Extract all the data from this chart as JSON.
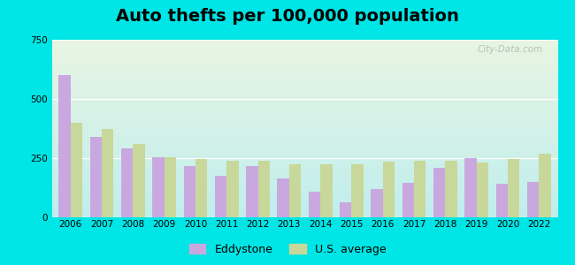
{
  "title": "Auto thefts per 100,000 population",
  "years": [
    2006,
    2007,
    2008,
    2009,
    2010,
    2011,
    2012,
    2013,
    2014,
    2015,
    2016,
    2017,
    2018,
    2019,
    2020,
    2022
  ],
  "eddystone": [
    600,
    340,
    290,
    255,
    215,
    175,
    215,
    165,
    110,
    65,
    120,
    145,
    210,
    250,
    140,
    150
  ],
  "us_average": [
    400,
    375,
    310,
    255,
    245,
    240,
    240,
    225,
    225,
    225,
    235,
    240,
    240,
    230,
    245,
    270
  ],
  "eddystone_color": "#c9a8e0",
  "us_avg_color": "#c8d89a",
  "bg_outer": "#00e5e5",
  "bg_top_left": "#e8f5e2",
  "bg_bottom_right": "#c0eeee",
  "ylim": [
    0,
    750
  ],
  "yticks": [
    0,
    250,
    500,
    750
  ],
  "bar_width": 0.38,
  "title_fontsize": 14,
  "legend_label_eddystone": "Eddystone",
  "legend_label_us": "U.S. average",
  "watermark": "City-Data.com"
}
